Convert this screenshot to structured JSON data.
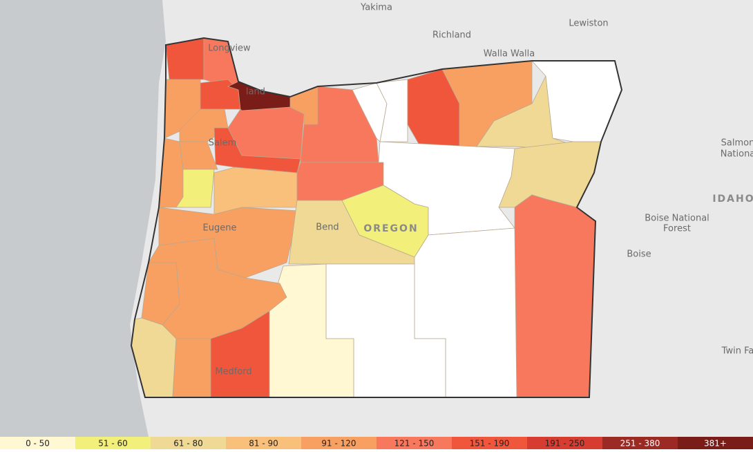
{
  "map": {
    "place_labels": [
      "Yakima",
      "Richland",
      "Lewiston",
      "Walla Walla",
      "Longview",
      "land",
      "Salem",
      "Eugene",
      "Bend",
      "OREGON",
      "Medford",
      "Boise National",
      "Forest",
      "Boise",
      "IDAHO",
      "Salmon",
      "Nationa",
      "Twin Fa"
    ],
    "legend": [
      {
        "label": "0 - 50",
        "color": "#fff8d2"
      },
      {
        "label": "51 - 60",
        "color": "#f2ef7a"
      },
      {
        "label": "61 - 80",
        "color": "#efd995"
      },
      {
        "label": "81 - 90",
        "color": "#f9c07c"
      },
      {
        "label": "91 - 120",
        "color": "#f7a062"
      },
      {
        "label": "121 - 150",
        "color": "#f7785c"
      },
      {
        "label": "151 - 190",
        "color": "#f0563c"
      },
      {
        "label": "191 - 250",
        "color": "#d63c30"
      },
      {
        "label": "251 - 380",
        "color": "#9b2a24"
      },
      {
        "label": "381+",
        "color": "#7a1c18"
      }
    ]
  }
}
